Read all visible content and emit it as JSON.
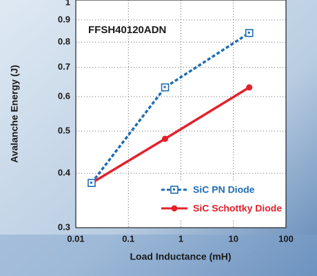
{
  "chart_data": {
    "type": "line",
    "title": "FFSH40120ADN",
    "x_label": "Load Inductance (mH)",
    "y_label": "Avalanche Energy (J)",
    "xscale": "log",
    "yscale": "log",
    "x": [
      0.02,
      0.5,
      20
    ],
    "series": [
      {
        "name": "SiC PN Diode",
        "color": "#1f6db3",
        "values": [
          0.38,
          0.63,
          0.84
        ]
      },
      {
        "name": "SiC Schottky Diode",
        "color": "#e3202b",
        "values": [
          0.38,
          0.48,
          0.63
        ]
      }
    ],
    "xlim": [
      0.01,
      100
    ],
    "xticks": [
      0.01,
      0.1,
      1,
      10,
      100
    ],
    "ylim": [
      0.3,
      1
    ],
    "yticks": [
      0.3,
      0.4,
      0.5,
      0.6,
      0.7,
      0.8,
      0.9,
      1
    ],
    "grid": true,
    "legend": "lower right"
  }
}
